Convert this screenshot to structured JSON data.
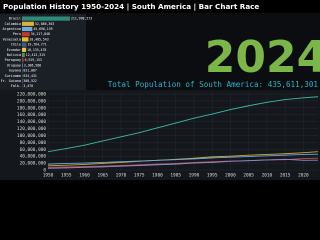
{
  "title": "Population History 1950-2024 | South America | Bar Chart Race",
  "chart_data": [
    {
      "type": "hbar",
      "categories": [
        "Brazil",
        "Colombia",
        "Argentina",
        "Peru",
        "Venezuela",
        "Chile",
        "Ecuador",
        "Bolivia",
        "Paraguay",
        "Uruguay",
        "Guyana",
        "Suriname",
        "Fr. Guiana",
        "Falk."
      ],
      "values": [
        211998573,
        52886363,
        45696159,
        34217848,
        28405543,
        19764771,
        18135478,
        12413315,
        6929153,
        3386588,
        831087,
        634431,
        308522,
        3470
      ],
      "value_labels": [
        "211,998,573",
        "52,886,363",
        "45,696,159",
        "34,217,848",
        "28,405,543",
        "19,764,771",
        "18,135,478",
        "12,413,315",
        "6,929,153",
        "3,386,588",
        "831,087",
        "634,431",
        "308,522",
        "3,470"
      ],
      "colors": [
        "#2e8b7a",
        "#d9b23a",
        "#6fa8dc",
        "#c0392b",
        "#e6c229",
        "#3d5a98",
        "#e8c547",
        "#4a9a4a",
        "#b03a3a",
        "#5b8fd0",
        "#3fa34d",
        "#2f7d3a",
        "#7aa6c2",
        "#2a4d8f"
      ],
      "annotations": [
        "2024",
        "Total Population of South America: 435,611,301"
      ]
    },
    {
      "type": "line",
      "x": [
        1950,
        1955,
        1960,
        1965,
        1970,
        1975,
        1980,
        1985,
        1990,
        1995,
        2000,
        2005,
        2010,
        2015,
        2020,
        2024
      ],
      "series": [
        {
          "name": "Brazil",
          "color": "#3fb7a4",
          "values": [
            53000000,
            62000000,
            72000000,
            84000000,
            96000000,
            108000000,
            122000000,
            136000000,
            150000000,
            162000000,
            175000000,
            186000000,
            196000000,
            204000000,
            209000000,
            212000000
          ]
        },
        {
          "name": "Colombia",
          "color": "#c9a83a",
          "values": [
            12000000,
            14000000,
            16000000,
            19000000,
            22000000,
            25000000,
            28000000,
            31000000,
            34000000,
            38000000,
            40000000,
            43000000,
            45000000,
            47000000,
            50000000,
            52900000
          ]
        },
        {
          "name": "Argentina",
          "color": "#6fa8dc",
          "values": [
            17000000,
            19000000,
            20000000,
            22000000,
            24000000,
            26000000,
            28000000,
            30000000,
            32000000,
            35000000,
            37000000,
            39000000,
            41000000,
            43000000,
            45000000,
            45700000
          ]
        },
        {
          "name": "Peru",
          "color": "#c05050",
          "values": [
            7600000,
            8700000,
            10000000,
            11500000,
            13000000,
            15000000,
            17000000,
            19000000,
            22000000,
            24000000,
            26000000,
            27000000,
            29000000,
            30000000,
            33000000,
            34200000
          ]
        },
        {
          "name": "Venezuela",
          "color": "#8a8ad0",
          "values": [
            5000000,
            6000000,
            8000000,
            9000000,
            11000000,
            13000000,
            15000000,
            17000000,
            20000000,
            22000000,
            25000000,
            27000000,
            29000000,
            31000000,
            28000000,
            28400000
          ]
        }
      ],
      "xlim": [
        1950,
        2024
      ],
      "xticks": [
        1950,
        1955,
        1960,
        1965,
        1970,
        1975,
        1980,
        1985,
        1990,
        1995,
        2000,
        2005,
        2010,
        2015,
        2020
      ],
      "ylim": [
        0,
        220000000
      ],
      "yticks": [
        {
          "value": 0,
          "label": "0"
        },
        {
          "value": 20000000,
          "label": "20,000,000"
        },
        {
          "value": 40000000,
          "label": "40,000,000"
        },
        {
          "value": 60000000,
          "label": "60,000,000"
        },
        {
          "value": 80000000,
          "label": "80,000,000"
        },
        {
          "value": 100000000,
          "label": "100,000,000"
        },
        {
          "value": 120000000,
          "label": "120,000,000"
        },
        {
          "value": 140000000,
          "label": "140,000,000"
        },
        {
          "value": 160000000,
          "label": "160,000,000"
        },
        {
          "value": 180000000,
          "label": "180,000,000"
        },
        {
          "value": 200000000,
          "label": "200,000,000"
        },
        {
          "value": 220000000,
          "label": "220,000,000"
        }
      ],
      "grid": true
    }
  ]
}
